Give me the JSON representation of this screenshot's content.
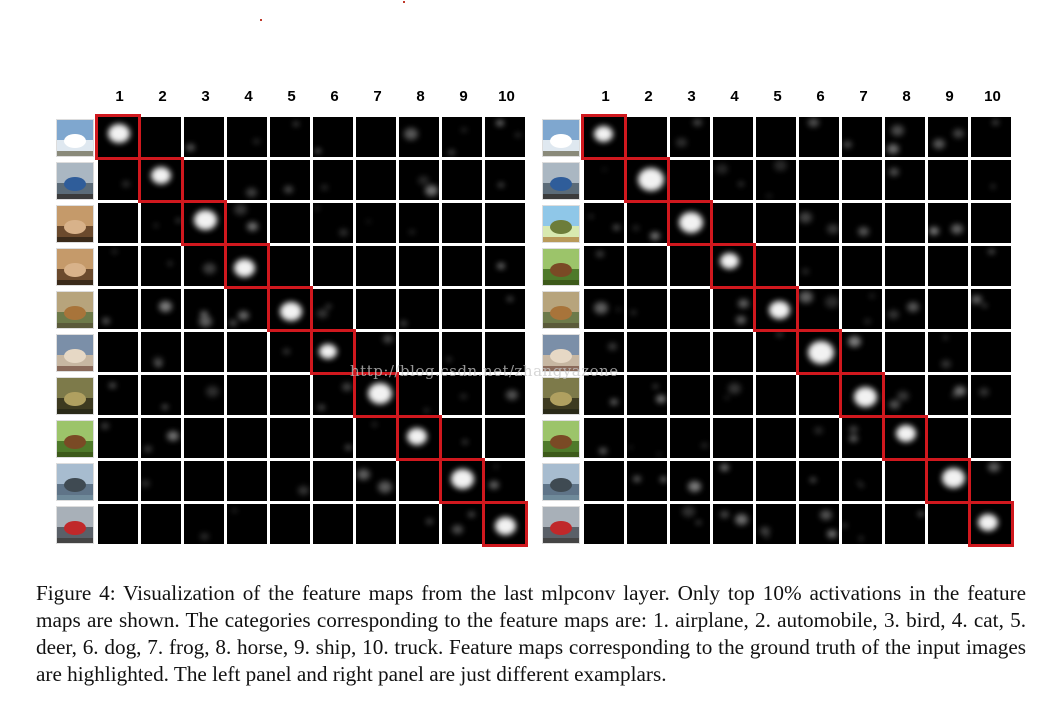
{
  "figure": {
    "column_labels": [
      "1",
      "2",
      "3",
      "4",
      "5",
      "6",
      "7",
      "8",
      "9",
      "10"
    ],
    "categories": [
      "airplane",
      "automobile",
      "bird",
      "cat",
      "deer",
      "dog",
      "frog",
      "horse",
      "ship",
      "truck"
    ],
    "panels": [
      {
        "name": "left",
        "row_images": [
          "airplane",
          "automobile",
          "cat",
          "cat",
          "deer",
          "dog",
          "frog",
          "horse",
          "ship",
          "truck"
        ],
        "highlighted": [
          1,
          2,
          3,
          4,
          5,
          6,
          7,
          8,
          9,
          10
        ]
      },
      {
        "name": "right",
        "row_images": [
          "airplane",
          "automobile",
          "bird",
          "horse",
          "deer",
          "dog",
          "frog",
          "horse",
          "ship",
          "truck"
        ],
        "highlighted": [
          1,
          2,
          3,
          4,
          5,
          6,
          7,
          8,
          9,
          10
        ]
      }
    ],
    "highlight_color": "#d0181e",
    "watermark": "http://blog.csdn.net/zhangyazone",
    "caption": "Figure 4: Visualization of the feature maps from the last mlpconv layer. Only top 10% activations in the feature maps are shown. The categories corresponding to the feature maps are: 1. airplane, 2. automobile, 3. bird, 4. cat, 5. deer, 6. dog, 7. frog, 8. horse, 9. ship, 10. truck. Feature maps corresponding to the ground truth of the input images are highlighted. The left panel and right panel are just different examplars."
  }
}
